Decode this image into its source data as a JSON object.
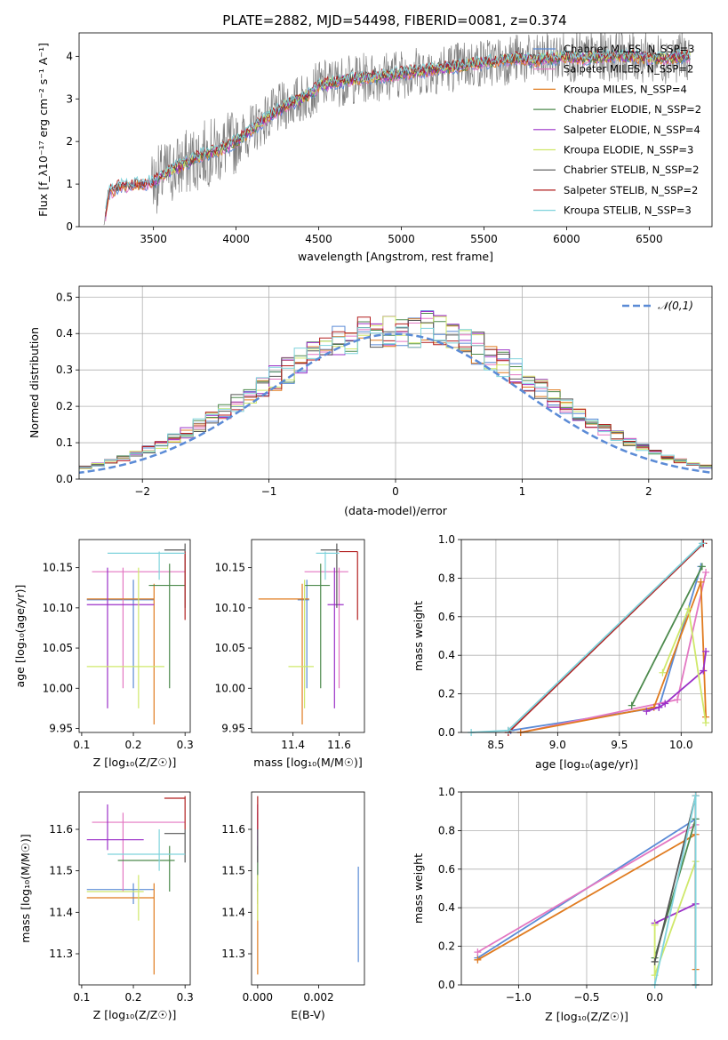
{
  "figure_title": "PLATE=2882, MJD=54498, FIBERID=0081, z=0.374",
  "colors": {
    "Chabrier MILES": "#5b8bd6",
    "Salpeter MILES": "#e377c2",
    "Kroupa MILES": "#e07b1f",
    "Chabrier ELODIE": "#4d8a4d",
    "Salpeter ELODIE": "#9b30c8",
    "Kroupa ELODIE": "#cfe86a",
    "Chabrier STELIB": "#555555",
    "Salpeter STELIB": "#b21f1f",
    "Kroupa STELIB": "#7fd3dc",
    "gaussian": "#5b8bd6"
  },
  "chart_data": [
    {
      "panel": "spectrum",
      "type": "line",
      "xlabel": "wavelength [Angstrom, rest frame]",
      "ylabel": "Flux [f_λ10⁻¹⁷ erg cm⁻² s⁻¹ A⁻¹]",
      "xlim": [
        3050,
        6880
      ],
      "ylim": [
        0,
        4.55
      ],
      "xticks": [
        3500,
        4000,
        4500,
        5000,
        5500,
        6000,
        6500
      ],
      "yticks": [
        0,
        1,
        2,
        3,
        4
      ],
      "legend_position": "top-right",
      "legend": [
        "Chabrier MILES, N_SSP=3",
        "Salpeter MILES, N_SSP=2",
        "Kroupa MILES, N_SSP=4",
        "Chabrier ELODIE, N_SSP=2",
        "Salpeter ELODIE, N_SSP=4",
        "Kroupa ELODIE, N_SSP=3",
        "Chabrier STELIB, N_SSP=2",
        "Salpeter STELIB, N_SSP=2",
        "Kroupa STELIB, N_SSP=3"
      ],
      "continuum": {
        "x": [
          3200,
          3230,
          3300,
          3400,
          3500,
          3600,
          3700,
          3800,
          3900,
          4000,
          4100,
          4200,
          4300,
          4400,
          4500,
          4600,
          4700,
          4800,
          4900,
          5000,
          5100,
          5200,
          5300,
          5400,
          5500,
          5600,
          5700,
          5800,
          5900,
          6000,
          6100,
          6200,
          6300,
          6400,
          6500,
          6600,
          6700,
          6750
        ],
        "y": [
          0.02,
          0.8,
          0.95,
          1.0,
          1.05,
          1.3,
          1.5,
          1.7,
          1.8,
          2.0,
          2.3,
          2.6,
          2.85,
          3.0,
          3.3,
          3.4,
          3.45,
          3.5,
          3.55,
          3.6,
          3.65,
          3.7,
          3.75,
          3.8,
          3.85,
          3.9,
          3.95,
          3.9,
          3.95,
          4.0,
          3.95,
          4.0,
          4.0,
          4.0,
          3.95,
          3.95,
          4.0,
          4.0
        ]
      }
    },
    {
      "panel": "residuals",
      "type": "line",
      "xlabel": "(data-model)/error",
      "ylabel": "Normed distribution",
      "xlim": [
        -2.5,
        2.5
      ],
      "ylim": [
        0,
        0.53
      ],
      "xticks": [
        -2,
        -1,
        0,
        1,
        2
      ],
      "yticks": [
        0.0,
        0.1,
        0.2,
        0.3,
        0.4,
        0.5
      ],
      "grid": true,
      "legend_position": "top-right",
      "legend": [
        "𝒩(0,1)"
      ]
    },
    {
      "panel": "age_vs_Z",
      "type": "scatter",
      "xlabel": "Z [log₁₀(Z/Z☉)]",
      "ylabel": "age  [log₁₀(age/yr)]",
      "xlim": [
        0.095,
        0.31
      ],
      "ylim": [
        9.945,
        10.185
      ],
      "xticks": [
        0.1,
        0.2,
        0.3
      ],
      "yticks": [
        9.95,
        10.0,
        10.05,
        10.1,
        10.15
      ],
      "points": [
        {
          "model": "Chabrier MILES",
          "x": 0.2,
          "y": 10.11,
          "xerr": [
            0.11,
            0.24
          ],
          "yerr": [
            10.0,
            10.135
          ]
        },
        {
          "model": "Salpeter MILES",
          "x": 0.18,
          "y": 10.145,
          "xerr": [
            0.12,
            0.3
          ],
          "yerr": [
            10.0,
            10.15
          ]
        },
        {
          "model": "Kroupa MILES",
          "x": 0.24,
          "y": 10.111,
          "xerr": [
            0.11,
            0.24
          ],
          "yerr": [
            9.955,
            10.13
          ]
        },
        {
          "model": "Chabrier ELODIE",
          "x": 0.27,
          "y": 10.128,
          "xerr": [
            0.23,
            0.3
          ],
          "yerr": [
            10.0,
            10.155
          ]
        },
        {
          "model": "Salpeter ELODIE",
          "x": 0.15,
          "y": 10.104,
          "xerr": [
            0.11,
            0.24
          ],
          "yerr": [
            9.975,
            10.15
          ]
        },
        {
          "model": "Kroupa ELODIE",
          "x": 0.21,
          "y": 10.027,
          "xerr": [
            0.11,
            0.26
          ],
          "yerr": [
            9.975,
            10.15
          ]
        },
        {
          "model": "Chabrier STELIB",
          "x": 0.3,
          "y": 10.172,
          "xerr": [
            0.26,
            0.3
          ],
          "yerr": [
            10.1,
            10.18
          ]
        },
        {
          "model": "Salpeter STELIB",
          "x": 0.3,
          "y": 10.1,
          "xerr": [
            0.3,
            0.3
          ],
          "yerr": [
            10.085,
            10.17
          ]
        },
        {
          "model": "Kroupa STELIB",
          "x": 0.25,
          "y": 10.168,
          "xerr": [
            0.15,
            0.3
          ],
          "yerr": [
            10.135,
            10.17
          ]
        }
      ]
    },
    {
      "panel": "age_vs_mass",
      "type": "scatter",
      "xlabel": "mass [log₁₀(M/M☉)]",
      "xlim": [
        11.22,
        11.71
      ],
      "ylim": [
        9.945,
        10.185
      ],
      "xticks": [
        11.4,
        11.6
      ],
      "yticks": [
        9.95,
        10.0,
        10.05,
        10.1,
        10.15
      ],
      "points": [
        {
          "model": "Chabrier MILES",
          "x": 11.46,
          "y": 10.11,
          "xerr": [
            11.42,
            11.47
          ],
          "yerr": [
            10.0,
            10.135
          ]
        },
        {
          "model": "Salpeter MILES",
          "x": 11.6,
          "y": 10.145,
          "xerr": [
            11.45,
            11.64
          ],
          "yerr": [
            10.0,
            10.15
          ]
        },
        {
          "model": "Kroupa MILES",
          "x": 11.44,
          "y": 10.111,
          "xerr": [
            11.25,
            11.47
          ],
          "yerr": [
            9.955,
            10.13
          ]
        },
        {
          "model": "Chabrier ELODIE",
          "x": 11.52,
          "y": 10.128,
          "xerr": [
            11.45,
            11.56
          ],
          "yerr": [
            10.0,
            10.155
          ]
        },
        {
          "model": "Salpeter ELODIE",
          "x": 11.58,
          "y": 10.104,
          "xerr": [
            11.55,
            11.62
          ],
          "yerr": [
            9.975,
            10.15
          ]
        },
        {
          "model": "Kroupa ELODIE",
          "x": 11.45,
          "y": 10.027,
          "xerr": [
            11.38,
            11.49
          ],
          "yerr": [
            9.975,
            10.135
          ]
        },
        {
          "model": "Chabrier STELIB",
          "x": 11.59,
          "y": 10.172,
          "xerr": [
            11.52,
            11.6
          ],
          "yerr": [
            10.1,
            10.18
          ]
        },
        {
          "model": "Salpeter STELIB",
          "x": 11.68,
          "y": 10.17,
          "xerr": [
            11.6,
            11.68
          ],
          "yerr": [
            10.085,
            10.17
          ]
        },
        {
          "model": "Kroupa STELIB",
          "x": 11.54,
          "y": 10.168,
          "xerr": [
            11.5,
            11.6
          ],
          "yerr": [
            10.135,
            10.17
          ]
        }
      ]
    },
    {
      "panel": "weight_vs_age",
      "type": "line",
      "xlabel": "age  [log₁₀(age/yr)]",
      "ylabel": "mass weight",
      "xlim": [
        8.22,
        10.25
      ],
      "ylim": [
        0,
        1.0
      ],
      "xticks": [
        8.5,
        9.0,
        9.5,
        10.0
      ],
      "yticks": [
        0.0,
        0.2,
        0.4,
        0.6,
        0.8,
        1.0
      ],
      "grid": true,
      "series": [
        {
          "model": "Chabrier MILES",
          "x": [
            8.62,
            9.82,
            10.16
          ],
          "y": [
            0.01,
            0.13,
            0.86
          ]
        },
        {
          "model": "Salpeter MILES",
          "x": [
            8.7,
            9.97,
            10.2
          ],
          "y": [
            0.0,
            0.17,
            0.83
          ]
        },
        {
          "model": "Kroupa MILES",
          "x": [
            8.7,
            9.78,
            10.16,
            10.2
          ],
          "y": [
            0.0,
            0.13,
            0.78,
            0.08
          ]
        },
        {
          "model": "Chabrier ELODIE",
          "x": [
            9.6,
            10.17
          ],
          "y": [
            0.14,
            0.86
          ]
        },
        {
          "model": "Salpeter ELODIE",
          "x": [
            9.72,
            9.82,
            9.87,
            10.18,
            10.2
          ],
          "y": [
            0.11,
            0.13,
            0.15,
            0.32,
            0.42
          ]
        },
        {
          "model": "Kroupa ELODIE",
          "x": [
            9.85,
            10.06,
            10.2
          ],
          "y": [
            0.31,
            0.64,
            0.05
          ]
        },
        {
          "model": "Chabrier STELIB",
          "x": [
            8.6,
            10.18
          ],
          "y": [
            0.01,
            0.98
          ]
        },
        {
          "model": "Salpeter STELIB",
          "x": [
            8.6,
            10.18
          ],
          "y": [
            0.0,
            0.98
          ]
        },
        {
          "model": "Kroupa STELIB",
          "x": [
            8.3,
            8.6,
            10.17
          ],
          "y": [
            0.0,
            0.01,
            0.98
          ]
        }
      ]
    },
    {
      "panel": "mass_vs_Z",
      "type": "scatter",
      "xlabel": "Z [log₁₀(Z/Z☉)]",
      "ylabel": "mass [log₁₀(M/M☉)]",
      "xlim": [
        0.095,
        0.31
      ],
      "ylim": [
        11.225,
        11.69
      ],
      "xticks": [
        0.1,
        0.2,
        0.3
      ],
      "yticks": [
        11.3,
        11.4,
        11.5,
        11.6
      ],
      "points": [
        {
          "model": "Chabrier MILES",
          "x": 0.2,
          "y": 11.455,
          "xerr": [
            0.11,
            0.24
          ],
          "yerr": [
            11.42,
            11.47
          ]
        },
        {
          "model": "Salpeter MILES",
          "x": 0.18,
          "y": 11.617,
          "xerr": [
            0.12,
            0.3
          ],
          "yerr": [
            11.45,
            11.64
          ]
        },
        {
          "model": "Kroupa MILES",
          "x": 0.24,
          "y": 11.435,
          "xerr": [
            0.11,
            0.24
          ],
          "yerr": [
            11.25,
            11.47
          ]
        },
        {
          "model": "Chabrier ELODIE",
          "x": 0.27,
          "y": 11.525,
          "xerr": [
            0.17,
            0.28
          ],
          "yerr": [
            11.45,
            11.56
          ]
        },
        {
          "model": "Salpeter ELODIE",
          "x": 0.15,
          "y": 11.575,
          "xerr": [
            0.11,
            0.22
          ],
          "yerr": [
            11.55,
            11.66
          ]
        },
        {
          "model": "Kroupa ELODIE",
          "x": 0.21,
          "y": 11.45,
          "xerr": [
            0.11,
            0.22
          ],
          "yerr": [
            11.38,
            11.49
          ]
        },
        {
          "model": "Chabrier STELIB",
          "x": 0.3,
          "y": 11.59,
          "xerr": [
            0.26,
            0.3
          ],
          "yerr": [
            11.52,
            11.6
          ]
        },
        {
          "model": "Salpeter STELIB",
          "x": 0.3,
          "y": 11.675,
          "xerr": [
            0.26,
            0.3
          ],
          "yerr": [
            11.6,
            11.68
          ]
        },
        {
          "model": "Kroupa STELIB",
          "x": 0.25,
          "y": 11.54,
          "xerr": [
            0.15,
            0.3
          ],
          "yerr": [
            11.5,
            11.6
          ]
        }
      ]
    },
    {
      "panel": "mass_vs_EBV",
      "type": "scatter",
      "xlabel": "E(B-V)",
      "xlim": [
        -0.0002,
        0.0035
      ],
      "ylim": [
        11.225,
        11.69
      ],
      "xticks": [
        0.0,
        0.002
      ],
      "xticklabels": [
        "0.000",
        "0.002"
      ],
      "yticks": [
        11.3,
        11.4,
        11.5,
        11.6
      ],
      "points": [
        {
          "model": "Chabrier MILES",
          "x": 0.0,
          "y": 11.455,
          "yerr": [
            11.42,
            11.47
          ]
        },
        {
          "model": "Salpeter MILES",
          "x": 0.0,
          "y": 11.617,
          "yerr": [
            11.45,
            11.64
          ]
        },
        {
          "model": "Kroupa MILES",
          "x": 0.0,
          "y": 11.435,
          "yerr": [
            11.25,
            11.47
          ]
        },
        {
          "model": "Chabrier ELODIE",
          "x": 0.0,
          "y": 11.525,
          "yerr": [
            11.45,
            11.56
          ]
        },
        {
          "model": "Salpeter ELODIE",
          "x": 0.0,
          "y": 11.575,
          "yerr": [
            11.55,
            11.66
          ]
        },
        {
          "model": "Kroupa ELODIE",
          "x": 0.0,
          "y": 11.45,
          "yerr": [
            11.38,
            11.49
          ]
        },
        {
          "model": "Chabrier STELIB",
          "x": 0.0,
          "y": 11.59,
          "yerr": [
            11.52,
            11.6
          ]
        },
        {
          "model": "Salpeter STELIB",
          "x": 0.0,
          "y": 11.675,
          "yerr": [
            11.6,
            11.68
          ]
        },
        {
          "model": "Chabrier MILES",
          "x": 0.0033,
          "y": 11.39,
          "yerr": [
            11.28,
            11.51
          ]
        }
      ]
    },
    {
      "panel": "weight_vs_Z",
      "type": "line",
      "xlabel": "Z [log₁₀(Z/Z☉)]",
      "ylabel": "mass weight",
      "xlim": [
        -1.42,
        0.42
      ],
      "ylim": [
        0,
        1.0
      ],
      "xticks": [
        -1.0,
        -0.5,
        0.0
      ],
      "yticks": [
        0.0,
        0.2,
        0.4,
        0.6,
        0.8,
        1.0
      ],
      "grid": true,
      "series": [
        {
          "model": "Chabrier MILES",
          "x": [
            -1.3,
            0.3
          ],
          "y": [
            0.14,
            0.86
          ]
        },
        {
          "model": "Salpeter MILES",
          "x": [
            -1.3,
            0.3
          ],
          "y": [
            0.17,
            0.83
          ]
        },
        {
          "model": "Kroupa MILES",
          "x": [
            -1.3,
            0.3,
            0.3
          ],
          "y": [
            0.13,
            0.78,
            0.08
          ]
        },
        {
          "model": "Chabrier ELODIE",
          "x": [
            0.0,
            0.3
          ],
          "y": [
            0.14,
            0.86
          ]
        },
        {
          "model": "Salpeter ELODIE",
          "x": [
            0.0,
            0.3
          ],
          "y": [
            0.32,
            0.42
          ]
        },
        {
          "model": "Kroupa ELODIE",
          "x": [
            0.0,
            0.0,
            0.3
          ],
          "y": [
            0.31,
            0.05,
            0.64
          ]
        },
        {
          "model": "Chabrier STELIB",
          "x": [
            0.0,
            0.3,
            0.3
          ],
          "y": [
            0.12,
            0.98,
            0.0
          ]
        },
        {
          "model": "Salpeter STELIB",
          "x": [
            0.3,
            0.3
          ],
          "y": [
            0.98,
            0.0
          ]
        },
        {
          "model": "Kroupa STELIB",
          "x": [
            0.0,
            0.3,
            0.3
          ],
          "y": [
            0.0,
            0.98,
            0.0
          ]
        }
      ]
    }
  ]
}
